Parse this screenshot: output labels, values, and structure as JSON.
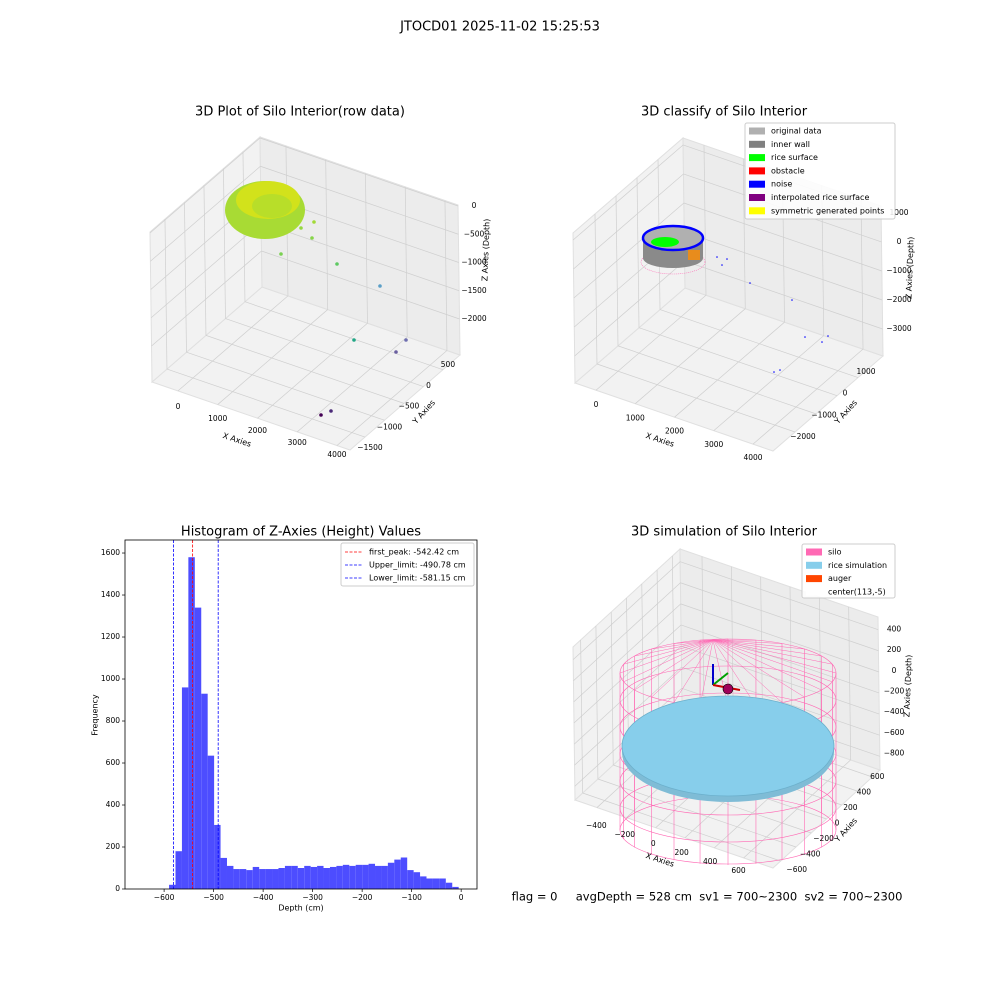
{
  "suptitle": "JTOCD01 2025-11-02 15:25:53",
  "annotation": "flag = 0     avgDepth = 528 cm  sv1 = 700~2300  sv2 = 700~2300",
  "chart_data": [
    {
      "type": "scatter3d",
      "title": "3D Plot of Silo Interior(row data)",
      "xlabel": "X Axies",
      "ylabel": "Y Axies",
      "zlabel": "Z Axies (Depth)",
      "xlim": [
        -653,
        4328
      ],
      "ylim": [
        -1884,
        937
      ],
      "zlim": [
        -2637,
        18
      ],
      "xticks": [
        0,
        1000,
        2000,
        3000,
        4000
      ],
      "yticks": [
        {
          "value": -1500,
          "label": "−1500"
        },
        {
          "value": -1000,
          "label": "−1000"
        },
        {
          "value": -500,
          "label": "−500"
        },
        0,
        500
      ],
      "zticks": [
        {
          "value": -2000,
          "label": "−2000"
        },
        {
          "value": -1500,
          "label": "−1500"
        },
        {
          "value": -1000,
          "label": "−1000"
        },
        {
          "value": -500,
          "label": "−500"
        },
        0
      ],
      "grid": true
    },
    {
      "type": "scatter3d",
      "title": "3D classify of Silo Interior",
      "xlabel": "X Axies",
      "ylabel": "Y Axies",
      "zlabel": "Z Axies (Depth)",
      "xlim": [
        -535,
        4509
      ],
      "ylim": [
        -3047,
        2189
      ],
      "zlim": [
        -3930,
        1240
      ],
      "xticks": [
        0,
        1000,
        2000,
        3000,
        4000
      ],
      "yticks": [
        {
          "value": -2000,
          "label": "−2000"
        },
        {
          "value": -1000,
          "label": "−1000"
        },
        0,
        1000
      ],
      "zticks": [
        {
          "value": -3000,
          "label": "−3000"
        },
        {
          "value": -2000,
          "label": "−2000"
        },
        {
          "value": -1000,
          "label": "−1000"
        },
        0,
        1000
      ],
      "grid": true,
      "legend": "upper right",
      "legend_items": [
        {
          "name": "original data",
          "color": "#b0b0b0"
        },
        {
          "name": "inner wall",
          "color": "#808080"
        },
        {
          "name": "rice surface",
          "color": "#00ff00"
        },
        {
          "name": "obstacle",
          "color": "#ff0000"
        },
        {
          "name": "noise",
          "color": "#0000ff"
        },
        {
          "name": "interpolated rice surface",
          "color": "#800080"
        },
        {
          "name": "symmetric generated points",
          "color": "#ffff00"
        }
      ]
    },
    {
      "type": "histogram",
      "title": "Histogram of Z-Axies (Height) Values",
      "xlabel": "Depth (cm)",
      "ylabel": "Frequency",
      "color": "#4d4dff",
      "bins": [
        -590,
        -577,
        -564,
        -551,
        -538,
        -525,
        -512,
        -499,
        -486,
        -473,
        -460,
        -447,
        -434,
        -421,
        -408,
        -395,
        -382,
        -369,
        -356,
        -343,
        -330,
        -317,
        -304,
        -291,
        -278,
        -265,
        -252,
        -239,
        -226,
        -213,
        -200,
        -187,
        -174,
        -161,
        -148,
        -135,
        -122,
        -109,
        -96,
        -83,
        -70,
        -57,
        -44,
        -31,
        -18,
        -5
      ],
      "counts": [
        20,
        180,
        960,
        1580,
        1340,
        930,
        635,
        305,
        148,
        110,
        95,
        95,
        90,
        105,
        95,
        95,
        95,
        100,
        110,
        110,
        100,
        110,
        105,
        110,
        100,
        105,
        110,
        115,
        110,
        115,
        115,
        120,
        110,
        110,
        125,
        140,
        150,
        90,
        80,
        60,
        50,
        50,
        50,
        30,
        10
      ],
      "xlim": [
        -679,
        32
      ],
      "ylim": [
        0,
        1662
      ],
      "xticks": [
        {
          "value": -600,
          "label": "−600"
        },
        {
          "value": -500,
          "label": "−500"
        },
        {
          "value": -400,
          "label": "−400"
        },
        {
          "value": -300,
          "label": "−300"
        },
        {
          "value": -200,
          "label": "−200"
        },
        {
          "value": -100,
          "label": "−100"
        },
        0
      ],
      "yticks": [
        0,
        200,
        400,
        600,
        800,
        1000,
        1200,
        1400,
        1600
      ],
      "legend": "upper right",
      "vlines": [
        {
          "name": "first_peak: -542.42 cm",
          "value": -542.42,
          "color": "#ff0000"
        },
        {
          "name": "Upper_limit: -490.78 cm",
          "value": -490.78,
          "color": "#0000ff"
        },
        {
          "name": "Lower_limit: -581.15 cm",
          "value": -581.15,
          "color": "#0000ff"
        }
      ]
    },
    {
      "type": "surface3d",
      "title": "3D simulation of Silo Interior",
      "xlabel": "X Axies",
      "ylabel": "Y Axies",
      "zlabel": "Z Axies (Depth)",
      "xlim": [
        -550,
        800
      ],
      "ylim": [
        -700,
        700
      ],
      "zlim": [
        -930,
        520
      ],
      "xticks": [
        {
          "value": -400,
          "label": "−400"
        },
        {
          "value": -200,
          "label": "−200"
        },
        0,
        200,
        400,
        600
      ],
      "yticks": [
        {
          "value": -600,
          "label": "−600"
        },
        {
          "value": -400,
          "label": "−400"
        },
        {
          "value": -200,
          "label": "−200"
        },
        0,
        200,
        400,
        600
      ],
      "zticks": [
        {
          "value": -800,
          "label": "−800"
        },
        {
          "value": -600,
          "label": "−600"
        },
        {
          "value": -400,
          "label": "−400"
        },
        {
          "value": -200,
          "label": "−200"
        },
        0,
        200,
        400
      ],
      "grid": true,
      "legend": "upper right",
      "legend_items": [
        {
          "name": "silo",
          "color": "#ff69b4"
        },
        {
          "name": "rice simulation",
          "color": "#87ceeb"
        },
        {
          "name": "auger",
          "color": "#ff4500"
        },
        {
          "name": "center(113,-5)",
          "color": "#ffffff"
        }
      ]
    }
  ]
}
